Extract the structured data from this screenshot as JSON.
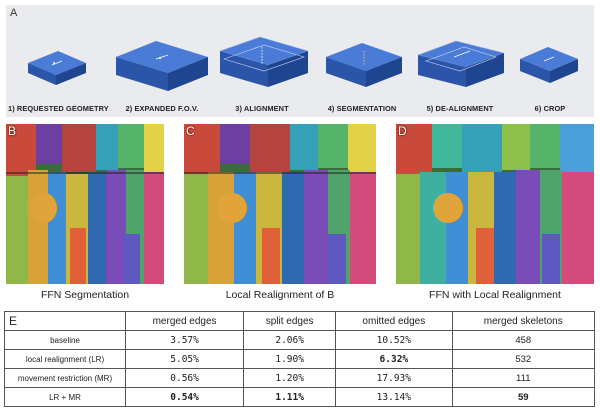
{
  "panel_a": {
    "letter": "A",
    "steps": [
      {
        "label": "1) REQUESTED GEOMETRY",
        "icon": "single-block-icon"
      },
      {
        "label": "2) EXPANDED F.O.V.",
        "icon": "expanded-block-icon"
      },
      {
        "label": "3) ALIGNMENT",
        "icon": "aligned-stack-icon"
      },
      {
        "label": "4) SEGMENTATION",
        "icon": "segmented-block-icon"
      },
      {
        "label": "5) DE-ALIGNMENT",
        "icon": "dealigned-stack-icon"
      },
      {
        "label": "6) CROP",
        "icon": "cropped-block-icon"
      }
    ]
  },
  "panels": [
    {
      "letter": "B",
      "caption": "FFN Segmentation"
    },
    {
      "letter": "C",
      "caption": "Local Realignment of B"
    },
    {
      "letter": "D",
      "caption": "FFN with Local Realignment"
    }
  ],
  "table": {
    "letter": "E",
    "headers": [
      "merged edges",
      "split edges",
      "omitted edges",
      "merged skeletons"
    ],
    "rows": [
      {
        "label": "baseline",
        "values": [
          "3.57%",
          "2.06%",
          "10.52%",
          "458"
        ],
        "bold": [
          false,
          false,
          false,
          false
        ]
      },
      {
        "label": "local realignment (LR)",
        "values": [
          "5.05%",
          "1.90%",
          "6.32%",
          "532"
        ],
        "bold": [
          false,
          false,
          true,
          false
        ]
      },
      {
        "label": "movement restriction (MR)",
        "values": [
          "0.56%",
          "1.20%",
          "17.93%",
          "111"
        ],
        "bold": [
          false,
          false,
          false,
          false
        ]
      },
      {
        "label": "LR + MR",
        "values": [
          "0.54%",
          "1.11%",
          "13.14%",
          "59"
        ],
        "bold": [
          true,
          true,
          false,
          true
        ]
      }
    ]
  },
  "colors": {
    "block_blue": "#2f5fb8",
    "panel_bg": "#e9ebee"
  }
}
